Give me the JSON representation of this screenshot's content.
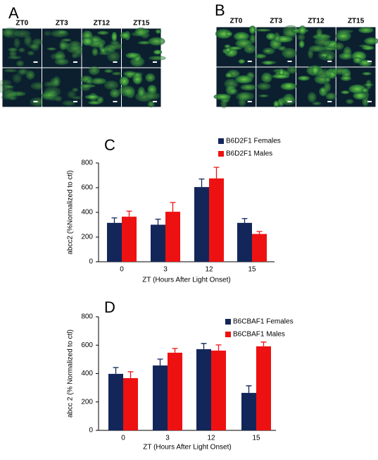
{
  "figure": {
    "panels": [
      {
        "label": "A",
        "columns": [
          "ZT0",
          "ZT3",
          "ZT12",
          "ZT15"
        ]
      },
      {
        "label": "B",
        "columns": [
          "ZT0",
          "ZT3",
          "ZT12",
          "ZT15"
        ]
      }
    ]
  },
  "chart_data": [
    {
      "type": "bar",
      "panel_label": "C",
      "categories": [
        "0",
        "3",
        "12",
        "15"
      ],
      "series": [
        {
          "name": "B6D2F1 Females",
          "color": "#13265a",
          "values": [
            315,
            300,
            605,
            315
          ],
          "errors": [
            40,
            45,
            65,
            35
          ]
        },
        {
          "name": "B6D2F1 Males",
          "color": "#ee1111",
          "values": [
            365,
            405,
            675,
            225
          ],
          "errors": [
            45,
            75,
            90,
            20
          ]
        }
      ],
      "ylim": [
        0,
        800
      ],
      "yticks": [
        0,
        200,
        400,
        600,
        800
      ],
      "ylabel": "abcc2  (%Normalized to ctl)",
      "xlabel": "ZT  (Hours After Light Onset)",
      "legend": "top-right"
    },
    {
      "type": "bar",
      "panel_label": "D",
      "categories": [
        "0",
        "3",
        "12",
        "15"
      ],
      "series": [
        {
          "name": "B6CBAF1 Females",
          "color": "#13265a",
          "values": [
            398,
            457,
            572,
            264
          ],
          "errors": [
            45,
            45,
            40,
            50
          ]
        },
        {
          "name": "B6CBAF1 Males",
          "color": "#ee1111",
          "values": [
            368,
            547,
            562,
            592
          ],
          "errors": [
            45,
            30,
            40,
            30
          ]
        }
      ],
      "ylim": [
        0,
        800
      ],
      "yticks": [
        0,
        200,
        400,
        600,
        800
      ],
      "ylabel": "abcc 2 (% Normalized to ctl)",
      "xlabel": "ZT  (Hours After Light Onset)",
      "legend": "top-right"
    }
  ]
}
